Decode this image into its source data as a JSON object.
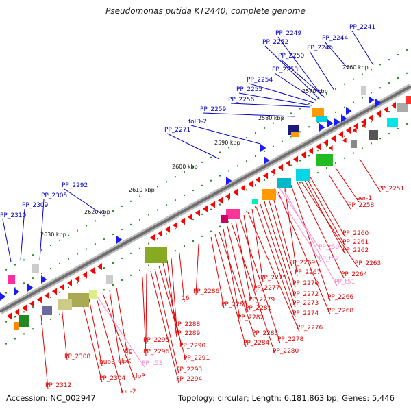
{
  "title": "Pseudomonas putida KT2440, complete genome",
  "footer": {
    "accession": "Accession: NC_002947",
    "summary": "Topology: circular; Length: 6,181,863 bp; Genes: 5,446"
  },
  "colors": {
    "backbone": "#8a8a8a",
    "forward_label": "#0000cc",
    "reverse_label": "#e00000",
    "rna_label": "#ff88c8",
    "forward_gene": "#1a1aff",
    "reverse_gene": "#ff0000",
    "tick": "#2e8b2e"
  },
  "kbp_ticks": [
    "2560 kbp",
    "2570 kbp",
    "2580 kbp",
    "2590 kbp",
    "2600 kbp",
    "2610 kbp",
    "2620 kbp",
    "2630 kbp"
  ],
  "forward_labels": [
    "PP_2241",
    "PP_2244",
    "PP_2245",
    "PP_2249",
    "PP_2250",
    "PP_2252",
    "PP_2253",
    "PP_2254",
    "PP_2255",
    "PP_2256",
    "PP_2259",
    "folD-2",
    "PP_2271",
    "PP_2292",
    "PP_2305",
    "PP_2309",
    "PP_2310"
  ],
  "reverse_labels": [
    "PP_2251",
    "aer-1",
    "PP_2258",
    "PP_2260",
    "PP_2261",
    "PP_2262",
    "PP_2263",
    "PP_2264",
    "PP_2266",
    "PP_2267",
    "PP_2268",
    "PP_2269",
    "PP_2270",
    "PP_2272",
    "PP_2273",
    "PP_2274",
    "PP_2275",
    "PP_2276",
    "PP_2277",
    "PP_2278",
    "PP_2279",
    "PP_2280",
    "PP_2281",
    "PP_2282",
    "PP_2283",
    "PP_2284",
    "PP_2285",
    "PP_2286",
    "16",
    "PP_2288",
    "PP_2289",
    "PP_2290",
    "PP_2291",
    "PP_2293",
    "PP_2294",
    "PP_2295",
    "PP_2296",
    "tig",
    "clpX",
    "clpP",
    "lon-2",
    "hupB",
    "PP_2304",
    "PP_2308",
    "PP_2312"
  ],
  "rna_labels": [
    "PP_t50",
    "PP_t52",
    "PP_t51",
    "PP_t53"
  ]
}
